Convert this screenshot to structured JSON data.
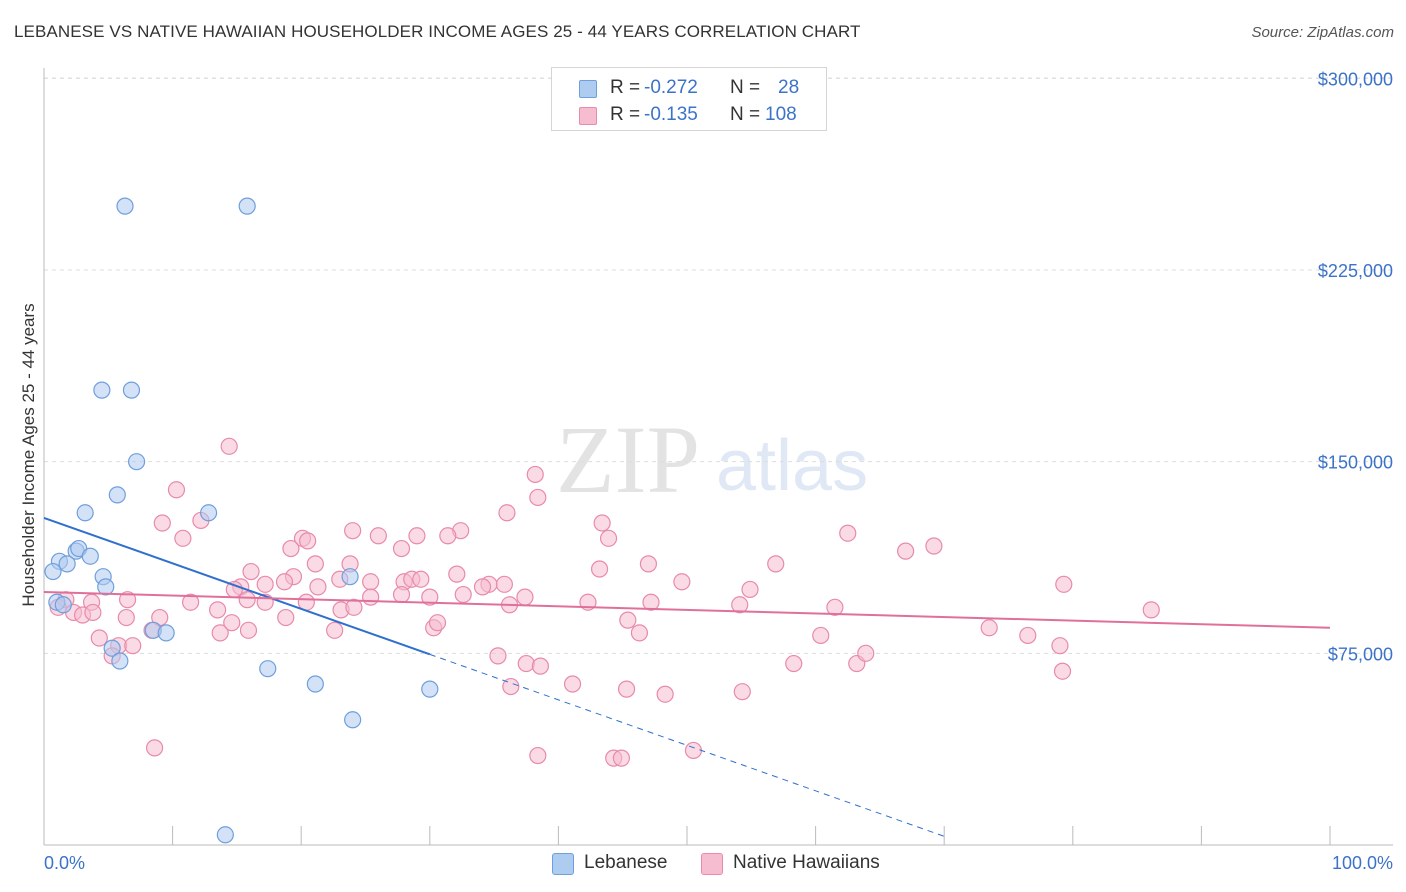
{
  "title": "LEBANESE VS NATIVE HAWAIIAN HOUSEHOLDER INCOME AGES 25 - 44 YEARS CORRELATION CHART",
  "source": "Source: ZipAtlas.com",
  "watermark": {
    "zip": "ZIP",
    "atlas": "atlas"
  },
  "legend": {
    "rows": [
      {
        "r_label": "R =",
        "r_value": "-0.272",
        "n_label": "N =",
        "n_value": "28"
      },
      {
        "r_label": "R =",
        "r_value": "-0.135",
        "n_label": "N =",
        "n_value": "108"
      }
    ]
  },
  "bottom_legend": [
    "Lebanese",
    "Native Hawaiians"
  ],
  "colors": {
    "lebanese_fill": "#aecbf0",
    "lebanese_stroke": "#6f9fdc",
    "lebanese_line": "#2f6fce",
    "hawaiian_fill": "#f6bcd0",
    "hawaiian_stroke": "#e88aab",
    "hawaiian_line": "#e0709a",
    "tick_text": "#3b73c8",
    "grid": "#dddddd"
  },
  "chart_data": {
    "type": "scatter",
    "title": "LEBANESE VS NATIVE HAWAIIAN HOUSEHOLDER INCOME AGES 25 - 44 YEARS CORRELATION CHART",
    "xlabel": "",
    "ylabel": "Householder Income Ages 25 - 44 years",
    "xlim": [
      0,
      100
    ],
    "ylim": [
      0,
      315000
    ],
    "x_tick_labels": [
      "0.0%",
      "100.0%"
    ],
    "y_ticks": [
      {
        "value": 75000,
        "label": "$75,000"
      },
      {
        "value": 150000,
        "label": "$150,000"
      },
      {
        "value": 225000,
        "label": "$225,000"
      },
      {
        "value": 300000,
        "label": "$300,000"
      }
    ],
    "grid": true,
    "legend_position": "top-center",
    "series": [
      {
        "name": "Lebanese",
        "r": -0.272,
        "n": 28,
        "trend": {
          "x_start": 0,
          "y_start": 128000,
          "x_solid_end": 30,
          "x_dashed_end": 70,
          "slope_per_pct": -1780
        },
        "points": [
          [
            6.3,
            250000
          ],
          [
            15.8,
            250000
          ],
          [
            4.5,
            178000
          ],
          [
            6.8,
            178000
          ],
          [
            7.2,
            150000
          ],
          [
            5.7,
            137000
          ],
          [
            12.8,
            130000
          ],
          [
            3.2,
            130000
          ],
          [
            4.6,
            105000
          ],
          [
            2.5,
            115000
          ],
          [
            2.7,
            116000
          ],
          [
            3.6,
            113000
          ],
          [
            1.2,
            111000
          ],
          [
            1.8,
            110000
          ],
          [
            0.7,
            107000
          ],
          [
            4.8,
            101000
          ],
          [
            1.0,
            95000
          ],
          [
            8.5,
            84000
          ],
          [
            9.5,
            83000
          ],
          [
            5.3,
            77000
          ],
          [
            5.9,
            72000
          ],
          [
            17.4,
            69000
          ],
          [
            21.1,
            63000
          ],
          [
            24.0,
            49000
          ],
          [
            30.0,
            61000
          ],
          [
            14.1,
            4000
          ],
          [
            1.5,
            94000
          ],
          [
            23.8,
            105000
          ]
        ]
      },
      {
        "name": "Native Hawaiians",
        "r": -0.135,
        "n": 108,
        "trend": {
          "x_start": 0,
          "y_start": 99000,
          "x_end": 100,
          "y_end": 85000
        },
        "points": [
          [
            14.4,
            156000
          ],
          [
            10.3,
            139000
          ],
          [
            38.2,
            145000
          ],
          [
            38.4,
            136000
          ],
          [
            36.0,
            130000
          ],
          [
            12.2,
            127000
          ],
          [
            9.2,
            126000
          ],
          [
            43.4,
            126000
          ],
          [
            32.4,
            123000
          ],
          [
            24.0,
            123000
          ],
          [
            29.0,
            121000
          ],
          [
            20.1,
            120000
          ],
          [
            20.5,
            119000
          ],
          [
            10.8,
            120000
          ],
          [
            26.0,
            121000
          ],
          [
            31.4,
            121000
          ],
          [
            43.9,
            120000
          ],
          [
            47.0,
            110000
          ],
          [
            62.5,
            122000
          ],
          [
            67.0,
            115000
          ],
          [
            69.2,
            117000
          ],
          [
            56.9,
            110000
          ],
          [
            21.1,
            110000
          ],
          [
            23.8,
            110000
          ],
          [
            27.8,
            116000
          ],
          [
            19.2,
            116000
          ],
          [
            43.2,
            108000
          ],
          [
            32.1,
            106000
          ],
          [
            19.4,
            105000
          ],
          [
            16.1,
            107000
          ],
          [
            25.4,
            103000
          ],
          [
            28.0,
            103000
          ],
          [
            28.6,
            104000
          ],
          [
            29.3,
            104000
          ],
          [
            23.0,
            104000
          ],
          [
            21.3,
            101000
          ],
          [
            18.7,
            103000
          ],
          [
            17.2,
            102000
          ],
          [
            15.3,
            101000
          ],
          [
            14.8,
            100000
          ],
          [
            35.8,
            102000
          ],
          [
            34.6,
            102000
          ],
          [
            49.6,
            103000
          ],
          [
            54.9,
            100000
          ],
          [
            79.3,
            102000
          ],
          [
            11.4,
            95000
          ],
          [
            6.5,
            96000
          ],
          [
            1.7,
            96000
          ],
          [
            3.7,
            95000
          ],
          [
            1.1,
            93000
          ],
          [
            2.3,
            91000
          ],
          [
            3.0,
            90000
          ],
          [
            3.8,
            91000
          ],
          [
            9.0,
            89000
          ],
          [
            13.5,
            92000
          ],
          [
            15.8,
            96000
          ],
          [
            17.2,
            95000
          ],
          [
            20.4,
            95000
          ],
          [
            23.1,
            92000
          ],
          [
            24.1,
            93000
          ],
          [
            25.4,
            97000
          ],
          [
            27.8,
            98000
          ],
          [
            30.0,
            97000
          ],
          [
            32.6,
            98000
          ],
          [
            34.1,
            101000
          ],
          [
            37.4,
            97000
          ],
          [
            42.3,
            95000
          ],
          [
            47.2,
            95000
          ],
          [
            54.1,
            94000
          ],
          [
            61.5,
            93000
          ],
          [
            73.5,
            85000
          ],
          [
            86.1,
            92000
          ],
          [
            6.4,
            89000
          ],
          [
            8.4,
            84000
          ],
          [
            13.7,
            83000
          ],
          [
            14.6,
            87000
          ],
          [
            15.9,
            84000
          ],
          [
            18.8,
            89000
          ],
          [
            22.6,
            84000
          ],
          [
            30.3,
            85000
          ],
          [
            30.6,
            87000
          ],
          [
            36.2,
            94000
          ],
          [
            45.4,
            88000
          ],
          [
            46.3,
            83000
          ],
          [
            60.4,
            82000
          ],
          [
            76.5,
            82000
          ],
          [
            79.0,
            78000
          ],
          [
            4.3,
            81000
          ],
          [
            5.8,
            78000
          ],
          [
            6.9,
            78000
          ],
          [
            5.3,
            74000
          ],
          [
            35.3,
            74000
          ],
          [
            37.5,
            71000
          ],
          [
            38.6,
            70000
          ],
          [
            58.3,
            71000
          ],
          [
            63.2,
            71000
          ],
          [
            63.9,
            75000
          ],
          [
            79.2,
            68000
          ],
          [
            45.3,
            61000
          ],
          [
            54.3,
            60000
          ],
          [
            48.3,
            59000
          ],
          [
            41.1,
            63000
          ],
          [
            36.3,
            62000
          ],
          [
            8.6,
            38000
          ],
          [
            50.5,
            37000
          ],
          [
            38.4,
            35000
          ],
          [
            44.3,
            34000
          ],
          [
            44.9,
            34000
          ]
        ]
      }
    ]
  }
}
